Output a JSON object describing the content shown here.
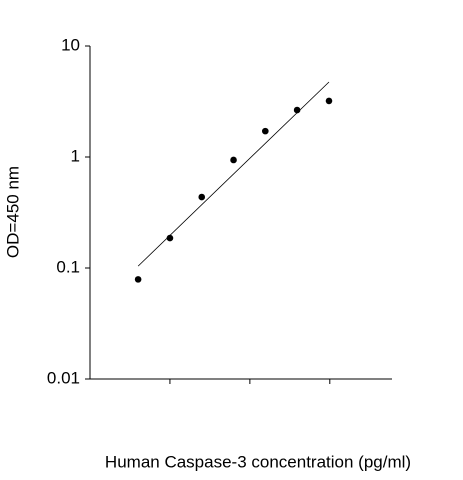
{
  "chart_data": {
    "type": "scatter",
    "x_label": "Human Caspase-3 concentration (pg/ml)",
    "y_label": "OD=450 nm",
    "x": [
      4,
      10,
      25,
      62.5,
      156,
      390,
      977
    ],
    "values": [
      0.079,
      0.186,
      0.436,
      0.94,
      1.71,
      2.65,
      3.2
    ],
    "color": "#000000",
    "trendline": {
      "x": [
        4,
        977
      ],
      "values": [
        0.104,
        4.74
      ],
      "color": "#000000"
    },
    "xlog": true,
    "ylog": true,
    "xlim": [
      1,
      6000
    ],
    "xticks": [
      10,
      100,
      1000
    ],
    "ylim": [
      0.01,
      10
    ],
    "yticks": [
      0.01,
      0.1,
      1,
      10
    ]
  }
}
